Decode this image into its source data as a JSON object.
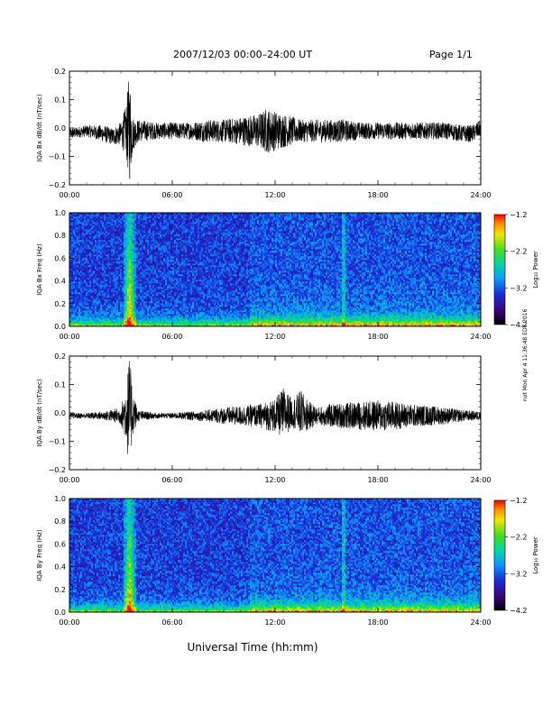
{
  "header": {
    "date_range": "2007/12/03  00:00–24:00 UT",
    "page": "Page 1/1"
  },
  "side_note": "not Mon Apr 4 11:36:48 EDT 2016",
  "footer": {
    "xlabel": "Universal Time (hh:mm)"
  },
  "chart_data": [
    {
      "type": "line",
      "ylabel": "IQA Bx dB/dt (nT/sec)",
      "xlim": [
        0,
        24
      ],
      "ylim": [
        -0.2,
        0.2
      ],
      "yticks": [
        -0.2,
        -0.1,
        0.0,
        0.1,
        0.2
      ],
      "ytick_labels": [
        "−0.2",
        "−0.1",
        "0.0",
        "0.1",
        "0.2"
      ],
      "xtick_labels": [
        "00:00",
        "06:00",
        "12:00",
        "18:00",
        "24:00"
      ],
      "envelope": {
        "x": [
          0,
          1,
          2,
          2.5,
          3.0,
          3.3,
          3.5,
          3.7,
          4.0,
          5,
          6,
          7,
          8,
          9,
          10,
          11,
          11.5,
          12,
          12.5,
          13,
          13.5,
          14,
          15,
          16,
          17,
          18,
          19,
          20,
          21,
          22,
          23,
          23.5,
          24
        ],
        "base": [
          -0.02,
          -0.01,
          -0.02,
          -0.03,
          -0.02,
          -0.01,
          0.0,
          -0.02,
          -0.01,
          -0.01,
          -0.01,
          -0.01,
          -0.01,
          -0.01,
          -0.01,
          -0.01,
          -0.01,
          -0.01,
          -0.01,
          -0.01,
          -0.01,
          -0.01,
          -0.01,
          -0.01,
          -0.01,
          -0.01,
          -0.01,
          -0.01,
          -0.01,
          -0.01,
          -0.02,
          -0.02,
          0.0
        ],
        "amp": [
          0.02,
          0.02,
          0.03,
          0.03,
          0.04,
          0.09,
          0.2,
          0.06,
          0.04,
          0.03,
          0.03,
          0.03,
          0.04,
          0.04,
          0.05,
          0.06,
          0.08,
          0.07,
          0.06,
          0.05,
          0.04,
          0.04,
          0.04,
          0.04,
          0.03,
          0.03,
          0.03,
          0.03,
          0.03,
          0.03,
          0.03,
          0.03,
          0.03
        ]
      }
    },
    {
      "type": "heatmap",
      "ylabel": "IQA Bx Freq (Hz)",
      "xlim": [
        0,
        24
      ],
      "ylim": [
        0,
        1.0
      ],
      "yticks": [
        0.0,
        0.2,
        0.4,
        0.6,
        0.8,
        1.0
      ],
      "ytick_labels": [
        "0.0",
        "0.2",
        "0.4",
        "0.6",
        "0.8",
        "1.0"
      ],
      "xtick_labels": [
        "00:00",
        "06:00",
        "12:00",
        "18:00",
        "24:00"
      ],
      "colorbar": {
        "label": "Log₁₀ Power",
        "range": [
          -4.2,
          -1.2
        ],
        "tick_labels": [
          "−1.2",
          "−2.2",
          "−3.2",
          "−4.2"
        ]
      },
      "features": {
        "burst_hours": 3.5,
        "line_hours": 16.0,
        "quiet_end_hours": 10.5
      }
    },
    {
      "type": "line",
      "ylabel": "IQA By dB/dt (nT/sec)",
      "xlim": [
        0,
        24
      ],
      "ylim": [
        -0.2,
        0.2
      ],
      "yticks": [
        -0.2,
        -0.1,
        0.0,
        0.1,
        0.2
      ],
      "ytick_labels": [
        "−0.2",
        "−0.1",
        "0.0",
        "0.1",
        "0.2"
      ],
      "xtick_labels": [
        "00:00",
        "06:00",
        "12:00",
        "18:00",
        "24:00"
      ],
      "envelope": {
        "x": [
          0,
          1,
          2,
          3.0,
          3.3,
          3.5,
          3.7,
          4.0,
          5,
          6,
          7,
          8,
          9,
          10,
          11,
          12,
          12.5,
          13,
          13.5,
          14,
          14.5,
          15,
          16,
          17,
          18,
          19,
          20,
          21,
          22,
          23,
          24
        ],
        "base": [
          -0.01,
          -0.01,
          -0.01,
          -0.01,
          0.0,
          0.0,
          0.0,
          -0.01,
          -0.01,
          -0.01,
          -0.01,
          -0.01,
          -0.01,
          -0.01,
          -0.01,
          -0.01,
          0.0,
          0.0,
          0.0,
          -0.01,
          -0.01,
          -0.01,
          -0.01,
          -0.01,
          -0.01,
          -0.01,
          -0.01,
          -0.01,
          -0.01,
          -0.01,
          -0.01
        ],
        "amp": [
          0.01,
          0.01,
          0.015,
          0.03,
          0.1,
          0.2,
          0.08,
          0.02,
          0.01,
          0.01,
          0.015,
          0.02,
          0.03,
          0.035,
          0.04,
          0.06,
          0.09,
          0.05,
          0.08,
          0.05,
          0.03,
          0.04,
          0.045,
          0.05,
          0.055,
          0.05,
          0.04,
          0.035,
          0.03,
          0.02,
          0.015
        ]
      }
    },
    {
      "type": "heatmap",
      "ylabel": "IQA By Freq (Hz)",
      "xlim": [
        0,
        24
      ],
      "ylim": [
        0,
        1.0
      ],
      "yticks": [
        0.0,
        0.2,
        0.4,
        0.6,
        0.8,
        1.0
      ],
      "ytick_labels": [
        "0.0",
        "0.2",
        "0.4",
        "0.6",
        "0.8",
        "1.0"
      ],
      "xtick_labels": [
        "00:00",
        "06:00",
        "12:00",
        "18:00",
        "24:00"
      ],
      "colorbar": {
        "label": "Log₁₀ Power",
        "range": [
          -4.2,
          -1.2
        ],
        "tick_labels": [
          "−1.2",
          "−2.2",
          "−3.2",
          "−4.2"
        ]
      },
      "features": {
        "burst_hours": 3.5,
        "line_hours": 16.0,
        "quiet_end_hours": 10.5
      }
    }
  ]
}
